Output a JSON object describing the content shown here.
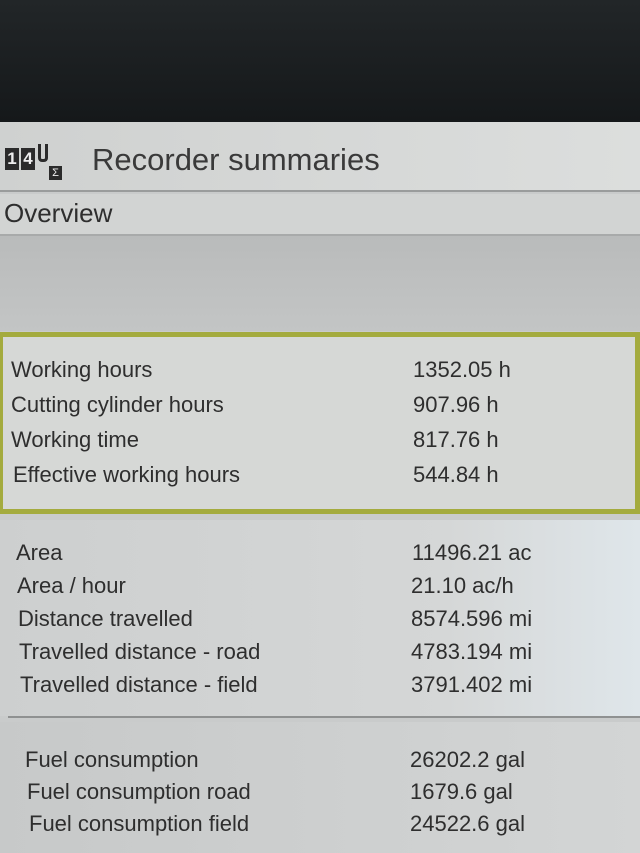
{
  "header": {
    "title": "Recorder summaries",
    "icon": "recorder-summary-icon",
    "icon_digits": [
      "1",
      "4"
    ]
  },
  "tab": {
    "label": "Overview"
  },
  "sections": [
    {
      "highlighted": true,
      "rows": [
        {
          "label": "Working hours",
          "value": "1352.05 h"
        },
        {
          "label": "Cutting cylinder hours",
          "value": "907.96 h"
        },
        {
          "label": "Working time",
          "value": "817.76 h"
        },
        {
          "label": "Effective working hours",
          "value": "544.84 h"
        }
      ]
    },
    {
      "rows": [
        {
          "label": "Area",
          "value": "11496.21 ac"
        },
        {
          "label": "Area / hour",
          "value": "21.10 ac/h"
        },
        {
          "label": "Distance travelled",
          "value": "8574.596 mi"
        },
        {
          "label": "Travelled distance - road",
          "value": "4783.194 mi"
        },
        {
          "label": "Travelled distance - field",
          "value": "3791.402 mi"
        }
      ]
    },
    {
      "rows": [
        {
          "label": "Fuel consumption",
          "value": "26202.2 gal"
        },
        {
          "label": "Fuel consumption road",
          "value": "1679.6 gal"
        },
        {
          "label": "Fuel consumption field",
          "value": "24522.6 gal"
        }
      ]
    }
  ],
  "colors": {
    "highlight_border": "#a4ab3e"
  }
}
